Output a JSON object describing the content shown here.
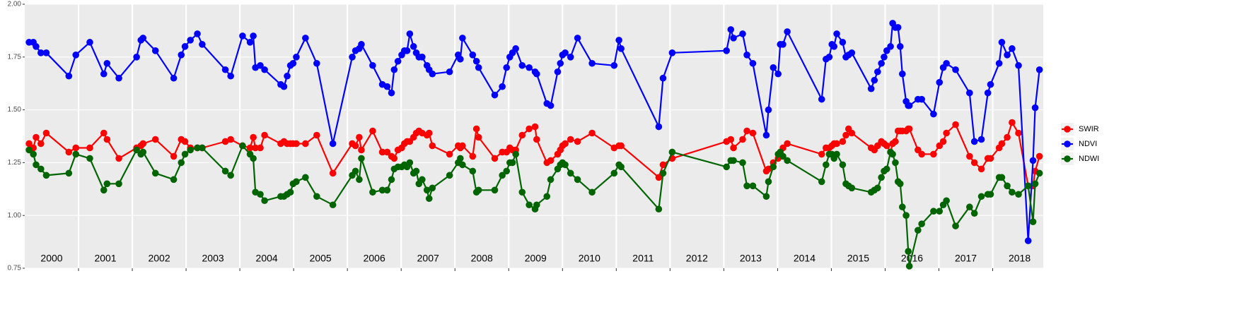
{
  "chart_data": {
    "type": "line",
    "x": [
      2000.08,
      2000.16,
      2000.21,
      2000.3,
      2000.4,
      2000.82,
      2000.95,
      2001.21,
      2001.47,
      2001.53,
      2001.75,
      2002.08,
      2002.16,
      2002.2,
      2002.43,
      2002.77,
      2002.91,
      2002.98,
      2003.08,
      2003.21,
      2003.3,
      2003.73,
      2003.83,
      2004.05,
      2004.19,
      2004.25,
      2004.29,
      2004.38,
      2004.46,
      2004.76,
      2004.82,
      2004.88,
      2004.94,
      2004.99,
      2005.05,
      2005.22,
      2005.43,
      2005.73,
      2006.09,
      2006.15,
      2006.22,
      2006.26,
      2006.47,
      2006.65,
      2006.74,
      2006.82,
      2006.87,
      2006.94,
      2007.01,
      2007.06,
      2007.11,
      2007.16,
      2007.23,
      2007.28,
      2007.33,
      2007.39,
      2007.48,
      2007.52,
      2007.58,
      2007.9,
      2008.06,
      2008.1,
      2008.14,
      2008.33,
      2008.4,
      2008.44,
      2008.74,
      2008.88,
      2008.96,
      2009.02,
      2009.07,
      2009.13,
      2009.25,
      2009.38,
      2009.49,
      2009.52,
      2009.71,
      2009.78,
      2009.91,
      2009.96,
      2010.0,
      2010.05,
      2010.15,
      2010.28,
      2010.55,
      2010.96,
      2011.05,
      2011.09,
      2011.79,
      2011.87,
      2012.04,
      2013.05,
      2013.13,
      2013.18,
      2013.35,
      2013.43,
      2013.54,
      2013.79,
      2013.83,
      2013.92,
      2014.01,
      2014.05,
      2014.1,
      2014.18,
      2014.82,
      2014.9,
      2014.96,
      2015.01,
      2015.05,
      2015.1,
      2015.21,
      2015.27,
      2015.32,
      2015.38,
      2015.74,
      2015.8,
      2015.86,
      2015.93,
      2015.98,
      2016.03,
      2016.1,
      2016.14,
      2016.19,
      2016.24,
      2016.28,
      2016.32,
      2016.39,
      2016.43,
      2016.45,
      2016.61,
      2016.68,
      2016.9,
      2017.01,
      2017.08,
      2017.14,
      2017.31,
      2017.57,
      2017.66,
      2017.79,
      2017.91,
      2017.96,
      2018.12,
      2018.17,
      2018.27,
      2018.36,
      2018.48,
      2018.66,
      2018.75,
      2018.79,
      2018.87
    ],
    "series": [
      {
        "name": "SWIR",
        "color": "#ff0000",
        "values": [
          1.34,
          1.32,
          1.37,
          1.34,
          1.39,
          1.3,
          1.32,
          1.32,
          1.39,
          1.36,
          1.27,
          1.32,
          1.33,
          1.34,
          1.36,
          1.28,
          1.36,
          1.35,
          1.32,
          1.32,
          1.32,
          1.35,
          1.36,
          1.33,
          1.32,
          1.37,
          1.32,
          1.32,
          1.38,
          1.34,
          1.35,
          1.34,
          1.34,
          1.34,
          1.34,
          1.34,
          1.38,
          1.2,
          1.34,
          1.33,
          1.37,
          1.31,
          1.4,
          1.3,
          1.3,
          1.28,
          1.27,
          1.31,
          1.32,
          1.34,
          1.35,
          1.35,
          1.37,
          1.39,
          1.4,
          1.39,
          1.38,
          1.39,
          1.33,
          1.29,
          1.33,
          1.32,
          1.33,
          1.28,
          1.41,
          1.37,
          1.27,
          1.3,
          1.3,
          1.32,
          1.31,
          1.31,
          1.38,
          1.41,
          1.42,
          1.36,
          1.25,
          1.26,
          1.29,
          1.31,
          1.33,
          1.34,
          1.36,
          1.35,
          1.39,
          1.32,
          1.33,
          1.33,
          1.18,
          1.24,
          1.27,
          1.35,
          1.36,
          1.32,
          1.36,
          1.4,
          1.39,
          1.21,
          1.22,
          1.25,
          1.27,
          1.29,
          1.32,
          1.34,
          1.29,
          1.32,
          1.32,
          1.33,
          1.34,
          1.34,
          1.35,
          1.38,
          1.41,
          1.39,
          1.32,
          1.31,
          1.33,
          1.35,
          1.34,
          1.33,
          1.3,
          1.34,
          1.35,
          1.4,
          1.4,
          1.4,
          1.4,
          1.41,
          1.41,
          1.31,
          1.29,
          1.29,
          1.33,
          1.35,
          1.39,
          1.43,
          1.28,
          1.25,
          1.22,
          1.27,
          1.27,
          1.32,
          1.34,
          1.37,
          1.44,
          1.39,
          1.14,
          1.14,
          1.21,
          1.28
        ]
      },
      {
        "name": "NDVI",
        "color": "#0000ff",
        "values": [
          1.82,
          1.82,
          1.8,
          1.77,
          1.77,
          1.66,
          1.76,
          1.82,
          1.67,
          1.72,
          1.65,
          1.75,
          1.83,
          1.84,
          1.78,
          1.65,
          1.76,
          1.8,
          1.83,
          1.86,
          1.81,
          1.69,
          1.66,
          1.85,
          1.82,
          1.85,
          1.7,
          1.71,
          1.69,
          1.62,
          1.61,
          1.66,
          1.71,
          1.72,
          1.75,
          1.84,
          1.72,
          1.34,
          1.75,
          1.78,
          1.79,
          1.81,
          1.71,
          1.62,
          1.61,
          1.58,
          1.69,
          1.73,
          1.76,
          1.78,
          1.78,
          1.86,
          1.8,
          1.77,
          1.75,
          1.75,
          1.71,
          1.69,
          1.67,
          1.68,
          1.76,
          1.74,
          1.84,
          1.76,
          1.73,
          1.7,
          1.57,
          1.61,
          1.7,
          1.75,
          1.77,
          1.79,
          1.71,
          1.7,
          1.68,
          1.67,
          1.53,
          1.52,
          1.68,
          1.72,
          1.76,
          1.77,
          1.75,
          1.84,
          1.72,
          1.71,
          1.83,
          1.79,
          1.42,
          1.65,
          1.77,
          1.78,
          1.88,
          1.84,
          1.86,
          1.76,
          1.72,
          1.38,
          1.5,
          1.7,
          1.67,
          1.81,
          1.81,
          1.87,
          1.55,
          1.74,
          1.75,
          1.81,
          1.8,
          1.86,
          1.82,
          1.75,
          1.76,
          1.77,
          1.6,
          1.64,
          1.68,
          1.72,
          1.75,
          1.78,
          1.8,
          1.91,
          1.89,
          1.89,
          1.8,
          1.67,
          1.54,
          1.52,
          1.52,
          1.55,
          1.55,
          1.48,
          1.63,
          1.7,
          1.72,
          1.69,
          1.58,
          1.35,
          1.36,
          1.58,
          1.62,
          1.72,
          1.82,
          1.76,
          1.79,
          1.71,
          0.88,
          1.26,
          1.51,
          1.69
        ]
      },
      {
        "name": "NDWI",
        "color": "#006400",
        "values": [
          1.31,
          1.29,
          1.24,
          1.22,
          1.19,
          1.2,
          1.29,
          1.27,
          1.12,
          1.15,
          1.15,
          1.31,
          1.29,
          1.3,
          1.2,
          1.17,
          1.25,
          1.29,
          1.31,
          1.32,
          1.32,
          1.21,
          1.19,
          1.33,
          1.29,
          1.27,
          1.11,
          1.1,
          1.07,
          1.09,
          1.09,
          1.1,
          1.11,
          1.15,
          1.16,
          1.18,
          1.09,
          1.05,
          1.19,
          1.21,
          1.17,
          1.27,
          1.11,
          1.12,
          1.12,
          1.17,
          1.22,
          1.23,
          1.23,
          1.24,
          1.23,
          1.25,
          1.2,
          1.21,
          1.15,
          1.17,
          1.12,
          1.08,
          1.13,
          1.19,
          1.25,
          1.27,
          1.24,
          1.21,
          1.11,
          1.12,
          1.12,
          1.19,
          1.21,
          1.25,
          1.25,
          1.29,
          1.11,
          1.05,
          1.03,
          1.05,
          1.09,
          1.17,
          1.22,
          1.24,
          1.25,
          1.24,
          1.2,
          1.17,
          1.11,
          1.2,
          1.24,
          1.23,
          1.03,
          1.2,
          1.3,
          1.23,
          1.26,
          1.26,
          1.25,
          1.14,
          1.14,
          1.09,
          1.16,
          1.23,
          1.29,
          1.3,
          1.28,
          1.26,
          1.16,
          1.24,
          1.29,
          1.29,
          1.27,
          1.29,
          1.24,
          1.15,
          1.14,
          1.13,
          1.11,
          1.12,
          1.13,
          1.18,
          1.21,
          1.22,
          1.3,
          1.29,
          1.25,
          1.16,
          1.15,
          1.04,
          1.0,
          0.83,
          0.76,
          0.93,
          0.96,
          1.02,
          1.02,
          1.05,
          1.07,
          0.95,
          1.04,
          1.01,
          1.09,
          1.1,
          1.1,
          1.18,
          1.18,
          1.14,
          1.11,
          1.1,
          1.14,
          0.97,
          1.15,
          1.2
        ]
      }
    ],
    "xlim": [
      2000,
      2018.94
    ],
    "xticks": [
      {
        "value": 2000.5,
        "label": "2000"
      },
      {
        "value": 2001.5,
        "label": "2001"
      },
      {
        "value": 2002.5,
        "label": "2002"
      },
      {
        "value": 2003.5,
        "label": "2003"
      },
      {
        "value": 2004.5,
        "label": "2004"
      },
      {
        "value": 2005.5,
        "label": "2005"
      },
      {
        "value": 2006.5,
        "label": "2006"
      },
      {
        "value": 2007.5,
        "label": "2007"
      },
      {
        "value": 2008.5,
        "label": "2008"
      },
      {
        "value": 2009.5,
        "label": "2009"
      },
      {
        "value": 2010.5,
        "label": "2010"
      },
      {
        "value": 2011.5,
        "label": "2011"
      },
      {
        "value": 2012.5,
        "label": "2012"
      },
      {
        "value": 2013.5,
        "label": "2013"
      },
      {
        "value": 2014.5,
        "label": "2014"
      },
      {
        "value": 2015.5,
        "label": "2015"
      },
      {
        "value": 2016.5,
        "label": "2016"
      },
      {
        "value": 2017.5,
        "label": "2017"
      },
      {
        "value": 2018.5,
        "label": "2018"
      }
    ],
    "xgrid": [
      2001,
      2002,
      2003,
      2004,
      2005,
      2006,
      2007,
      2008,
      2009,
      2010,
      2011,
      2012,
      2013,
      2014,
      2015,
      2016,
      2017,
      2018
    ],
    "ylim": [
      0.75,
      2.0
    ],
    "yticks": [
      {
        "value": 0.75,
        "label": "0.75"
      },
      {
        "value": 1.0,
        "label": "1.00"
      },
      {
        "value": 1.25,
        "label": "1.25"
      },
      {
        "value": 1.5,
        "label": "1.50"
      },
      {
        "value": 1.75,
        "label": "1.75"
      },
      {
        "value": 2.0,
        "label": "2.00"
      }
    ],
    "grid": true,
    "legend": "right"
  }
}
